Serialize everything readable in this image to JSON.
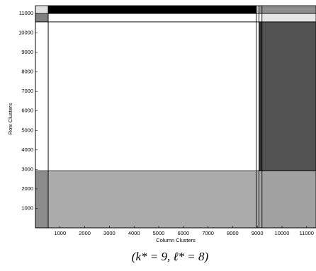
{
  "chart_data": {
    "type": "block-heatmap",
    "xlabel": "Column Clusters",
    "ylabel": "Row Clusters",
    "caption": "(k* = 9, ℓ* = 8)",
    "col_bounds": [
      0,
      520,
      8960,
      9070,
      9190,
      11380
    ],
    "row_bounds": [
      0,
      2920,
      10570,
      11000,
      11400
    ],
    "values": [
      [
        45,
        33,
        33,
        33,
        37
      ],
      [
        0,
        0,
        0,
        80,
        68
      ],
      [
        50,
        0,
        0,
        0,
        10
      ],
      [
        12,
        100,
        20,
        40,
        45
      ]
    ],
    "xlim": [
      0,
      11380
    ],
    "ylim": [
      0,
      11400
    ],
    "xticks": [
      1000,
      2000,
      3000,
      4000,
      5000,
      6000,
      7000,
      8000,
      9000,
      10000,
      11000
    ],
    "yticks": [
      1000,
      2000,
      3000,
      4000,
      5000,
      6000,
      7000,
      8000,
      9000,
      10000,
      11000
    ]
  }
}
